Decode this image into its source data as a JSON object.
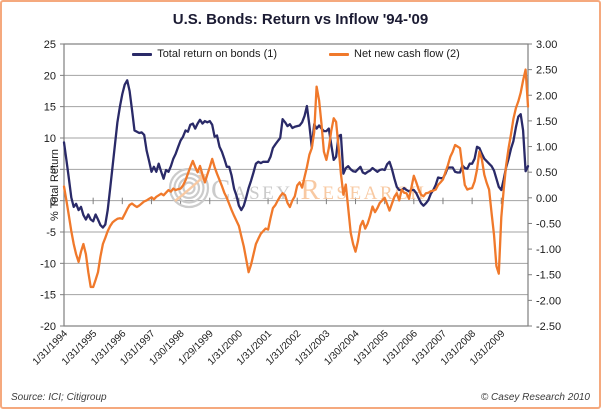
{
  "page": {
    "title": "U.S. Bonds: Return vs Inflow '94-'09",
    "source_note": "Source: ICI; Citigroup",
    "copyright": "© Casey Research 2010",
    "watermark": {
      "big1": "C",
      "small1": "ASEY",
      "big2": "R",
      "small2": "ESEARCH"
    }
  },
  "colors": {
    "bonds_line": "#2a2a68",
    "cashflow_line": "#f0792b",
    "card_border": "#f5a97e",
    "grid": "#a3a3a3",
    "axis": "#7f7f7f",
    "tick_text": "#1b1b1b",
    "watermark_gray": "#c9c9c9",
    "watermark_peach": "#f8c79e",
    "title_text": "#1b1b33"
  },
  "chart_data": {
    "type": "line",
    "title": "U.S. Bonds: Return vs Inflow '94-'09",
    "grid": true,
    "legend_position": "top-center",
    "legend": [
      "Total return on bonds (1)",
      "Net new cash flow (2)"
    ],
    "x_tick_labels": [
      "1/31/1994",
      "1/31/1995",
      "1/31/1996",
      "1/31/1997",
      "1/30/1998",
      "1/29/1999",
      "1/31/2000",
      "1/31/2001",
      "1/31/2002",
      "1/31/2003",
      "1/30/2004",
      "1/31/2005",
      "1/31/2006",
      "1/31/2007",
      "1/31/2008",
      "1/31/2009"
    ],
    "x_points_per_label": 12,
    "left_axis": {
      "title": "% Total Return",
      "range": [
        -20,
        25
      ],
      "ticks": [
        "25",
        "20",
        "15",
        "10",
        "5",
        "0",
        "-5",
        "-10",
        "-15",
        "-20"
      ]
    },
    "right_axis": {
      "title": "% Monthly Net New Inflow",
      "range": [
        -2.5,
        3
      ],
      "ticks": [
        "3.00",
        "2.50",
        "2.00",
        "1.50",
        "1.00",
        "0.50",
        "0.00",
        "-0.50",
        "-1.00",
        "-1.50",
        "-2.00",
        "-2.50"
      ]
    },
    "series": [
      {
        "name": "Total return on bonds (1)",
        "axis": "left",
        "color_key": "bonds_line",
        "values": [
          9.3,
          6.5,
          3.5,
          0.5,
          -1,
          -0.5,
          -1.5,
          -1,
          -2.3,
          -3,
          -2.2,
          -3,
          -3.3,
          -2.2,
          -3,
          -3.9,
          -4.3,
          -3.8,
          -1.5,
          2,
          5.5,
          9,
          12.5,
          15,
          17,
          18.5,
          19.2,
          17.5,
          14.5,
          11.2,
          11,
          10.8,
          10.9,
          10.5,
          8,
          6.4,
          4.6,
          5.4,
          4.6,
          5.9,
          4.6,
          3.5,
          4.9,
          4.6,
          5.5,
          6.7,
          7.5,
          8.6,
          9.6,
          10.2,
          11.2,
          11,
          12.1,
          12.3,
          11.5,
          12.3,
          12.9,
          12.3,
          12.7,
          12.5,
          12.7,
          12.1,
          10.2,
          10.4,
          8.6,
          7.8,
          6.7,
          5.4,
          5.4,
          4,
          1.9,
          0.8,
          -0.8,
          -1.5,
          -0.8,
          0.5,
          2,
          3.2,
          4.5,
          5.9,
          6.2,
          6,
          6.2,
          6.2,
          6.2,
          7,
          8.4,
          9,
          9.5,
          10,
          13,
          12.5,
          11.9,
          12.2,
          11.6,
          11.8,
          11.9,
          12,
          12.5,
          13.5,
          15.1,
          12,
          8.5,
          12.2,
          11.5,
          12,
          11.5,
          11.1,
          11.1,
          11.5,
          9,
          6.5,
          7,
          10.3,
          10.5,
          4.3,
          5.2,
          5.5,
          5,
          4.7,
          4.6,
          5,
          5.4,
          4.5,
          4.3,
          4.6,
          4.8,
          5.2,
          4.9,
          4.6,
          4.9,
          5,
          4.9,
          5.8,
          6.2,
          5,
          3.5,
          2.2,
          1.7,
          1.7,
          2,
          1.7,
          1.5,
          1.7,
          1.7,
          1.2,
          0.4,
          -0.4,
          -0.8,
          -0.4,
          0.1,
          1.1,
          1.7,
          2.5,
          3.7,
          3.6,
          3.6,
          4.3,
          5.3,
          5.3,
          5.3,
          4.6,
          4.5,
          4.5,
          5.6,
          5.2,
          5.1,
          5.9,
          5.9,
          6.7,
          8.6,
          8.4,
          7.5,
          6.7,
          6.3,
          5.9,
          5.5,
          4.8,
          3.5,
          2.2,
          1.7,
          3.4,
          5.3,
          6.7,
          8.3,
          9.5,
          11.7,
          13.4,
          13.8,
          11.2,
          4.7,
          5.5
        ]
      },
      {
        "name": "Net new cash flow (2)",
        "axis": "right",
        "color_key": "cashflow_line",
        "values": [
          0.22,
          -0.05,
          -0.35,
          -0.65,
          -0.9,
          -1.1,
          -1.25,
          -1.05,
          -0.9,
          -1.1,
          -1.45,
          -1.74,
          -1.74,
          -1.6,
          -1.45,
          -1.15,
          -0.9,
          -0.78,
          -0.65,
          -0.55,
          -0.48,
          -0.44,
          -0.41,
          -0.4,
          -0.41,
          -0.32,
          -0.22,
          -0.14,
          -0.11,
          -0.15,
          -0.18,
          -0.15,
          -0.11,
          -0.07,
          -0.05,
          -0.02,
          0.01,
          -0.03,
          0.02,
          0.05,
          0.08,
          0.05,
          0.1,
          0.15,
          0.12,
          0.18,
          0.15,
          0.17,
          0.18,
          0.24,
          0.34,
          0.47,
          0.6,
          0.72,
          0.6,
          0.5,
          0.62,
          0.45,
          0.3,
          0.45,
          0.6,
          0.76,
          0.6,
          0.47,
          0.35,
          0.23,
          0.1,
          0,
          -0.12,
          -0.24,
          -0.35,
          -0.45,
          -0.55,
          -0.75,
          -0.95,
          -1.2,
          -1.45,
          -1.3,
          -1.1,
          -0.9,
          -0.8,
          -0.7,
          -0.65,
          -0.6,
          -0.62,
          -0.4,
          -0.2,
          -0.14,
          -0.05,
          0.03,
          0.09,
          0.05,
          -0.1,
          -0.18,
          -0.05,
          0.03,
          0.24,
          0.3,
          0.2,
          0.4,
          0.6,
          0.84,
          0.97,
          1.28,
          2.17,
          1.9,
          1.44,
          0.9,
          0.74,
          0.97,
          1.3,
          1.55,
          1.48,
          1,
          0.47,
          0.06,
          0.26,
          -0.2,
          -0.68,
          -0.9,
          -1.05,
          -0.85,
          -0.55,
          -0.45,
          -0.6,
          -0.5,
          -0.35,
          -0.17,
          -0.28,
          -0.2,
          -0.1,
          -0.05,
          0,
          -0.12,
          -0.25,
          -0.11,
          0.02,
          0.09,
          -0.05,
          0.16,
          0.1,
          0.09,
          -0.02,
          0.2,
          0.43,
          0.3,
          0.16,
          0.06,
          0.03,
          0.09,
          0.1,
          0.13,
          0.14,
          0.16,
          0.25,
          0.3,
          0.36,
          0.5,
          0.63,
          0.8,
          0.9,
          1.03,
          1,
          0.97,
          0.6,
          0.25,
          0.16,
          0.18,
          0.19,
          0.32,
          0.55,
          0.9,
          0.76,
          0.45,
          0.29,
          0.16,
          -0.3,
          -0.72,
          -1.33,
          -1.48,
          -0.38,
          0.16,
          0.63,
          0.97,
          1.24,
          1.54,
          1.75,
          1.88,
          2.05,
          2.29,
          2.5,
          1.78
        ]
      }
    ]
  }
}
